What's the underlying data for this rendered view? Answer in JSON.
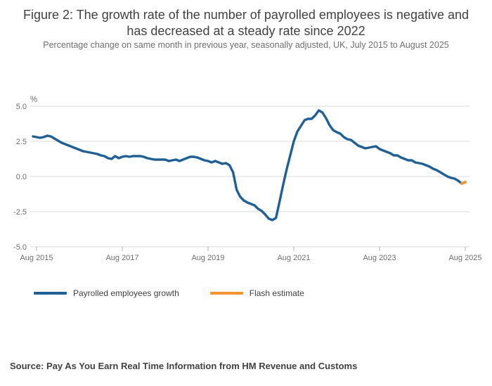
{
  "figure": {
    "title": "Figure 2: The growth rate of the number of payrolled employees is negative and has decreased at a steady rate since 2022",
    "subtitle": "Percentage change on same month in previous year, seasonally adjusted, UK, July 2015 to August 2025",
    "source": "Source: Pay As You Earn Real Time Information from HM Revenue and Customs"
  },
  "legend": {
    "items": [
      {
        "label": "Payrolled employees growth",
        "color": "#206095"
      },
      {
        "label": "Flash estimate",
        "color": "#f39431"
      }
    ]
  },
  "chart_data": {
    "type": "line",
    "unit_label": "%",
    "x_range": "July 2015 to August 2025",
    "x_tick_labels": [
      "Aug 2015",
      "Aug 2017",
      "Aug 2019",
      "Aug 2021",
      "Aug 2023",
      "Aug 2025"
    ],
    "y_tick_labels": [
      "5.0",
      "2.5",
      "0.0",
      "-2.5",
      "-5.0"
    ],
    "y_ticks": [
      5.0,
      2.5,
      0.0,
      -2.5,
      -5.0
    ],
    "ylim": [
      -5.0,
      5.0
    ],
    "grid": "horizontal",
    "legend_position": "bottom-left",
    "axis_color": "#b0b0b0",
    "grid_color": "#d9d9d9",
    "series": [
      {
        "name": "Payrolled employees growth",
        "color": "#206095",
        "start_month": "2015-07",
        "values": [
          2.85,
          2.8,
          2.75,
          2.8,
          2.9,
          2.85,
          2.7,
          2.55,
          2.4,
          2.3,
          2.2,
          2.1,
          2.0,
          1.9,
          1.8,
          1.75,
          1.7,
          1.65,
          1.6,
          1.5,
          1.45,
          1.3,
          1.25,
          1.45,
          1.3,
          1.4,
          1.45,
          1.4,
          1.45,
          1.45,
          1.45,
          1.4,
          1.3,
          1.25,
          1.2,
          1.2,
          1.2,
          1.2,
          1.1,
          1.15,
          1.2,
          1.1,
          1.2,
          1.3,
          1.4,
          1.4,
          1.35,
          1.25,
          1.15,
          1.1,
          1.0,
          1.1,
          1.0,
          0.9,
          0.95,
          0.8,
          0.3,
          -0.95,
          -1.45,
          -1.7,
          -1.85,
          -1.95,
          -2.05,
          -2.3,
          -2.45,
          -2.7,
          -3.0,
          -3.1,
          -2.95,
          -1.8,
          -0.6,
          0.5,
          1.5,
          2.5,
          3.2,
          3.6,
          4.0,
          4.1,
          4.1,
          4.35,
          4.7,
          4.55,
          4.15,
          3.65,
          3.3,
          3.15,
          3.05,
          2.8,
          2.65,
          2.6,
          2.4,
          2.2,
          2.1,
          2.0,
          2.05,
          2.1,
          2.15,
          1.95,
          1.85,
          1.75,
          1.65,
          1.5,
          1.5,
          1.35,
          1.25,
          1.15,
          1.15,
          1.0,
          0.95,
          0.9,
          0.8,
          0.7,
          0.55,
          0.45,
          0.3,
          0.15,
          0.0,
          -0.1,
          -0.15,
          -0.3,
          -0.5
        ]
      },
      {
        "name": "Flash estimate",
        "color": "#f39431",
        "start_month": "2025-07",
        "values": [
          -0.5,
          -0.4
        ]
      }
    ]
  }
}
